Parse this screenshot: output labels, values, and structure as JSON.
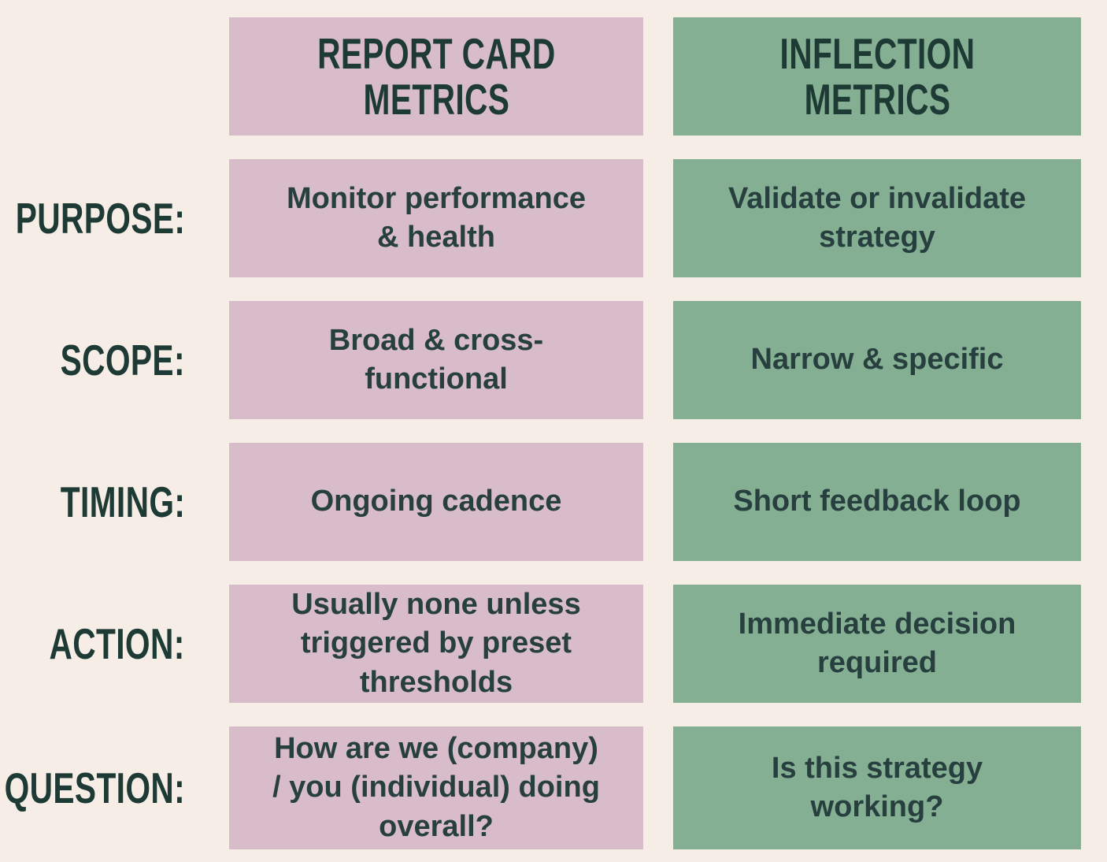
{
  "palette": {
    "background": "#f7ede7",
    "pink": "#d8bcca",
    "green": "#85af93",
    "heading_text": "#1e3a35",
    "cell_text": "#27403f"
  },
  "columns": [
    {
      "id": "report_card",
      "header": "REPORT CARD\nMETRICS",
      "color": "#d8bcca"
    },
    {
      "id": "inflection",
      "header": "INFLECTION\nMETRICS",
      "color": "#85af93"
    }
  ],
  "rows": [
    {
      "label": "PURPOSE:",
      "report_card": "Monitor performance\n& health",
      "inflection": "Validate or invalidate\nstrategy"
    },
    {
      "label": "SCOPE:",
      "report_card": "Broad & cross-\nfunctional",
      "inflection": "Narrow & specific"
    },
    {
      "label": "TIMING:",
      "report_card": "Ongoing cadence",
      "inflection": "Short feedback loop"
    },
    {
      "label": "ACTION:",
      "report_card": "Usually none unless\ntriggered by preset\nthresholds",
      "inflection": "Immediate decision\nrequired"
    },
    {
      "label": "QUESTION:",
      "report_card": "How are we (company)\n/ you (individual) doing\noverall?",
      "inflection": "Is this strategy\nworking?"
    }
  ]
}
